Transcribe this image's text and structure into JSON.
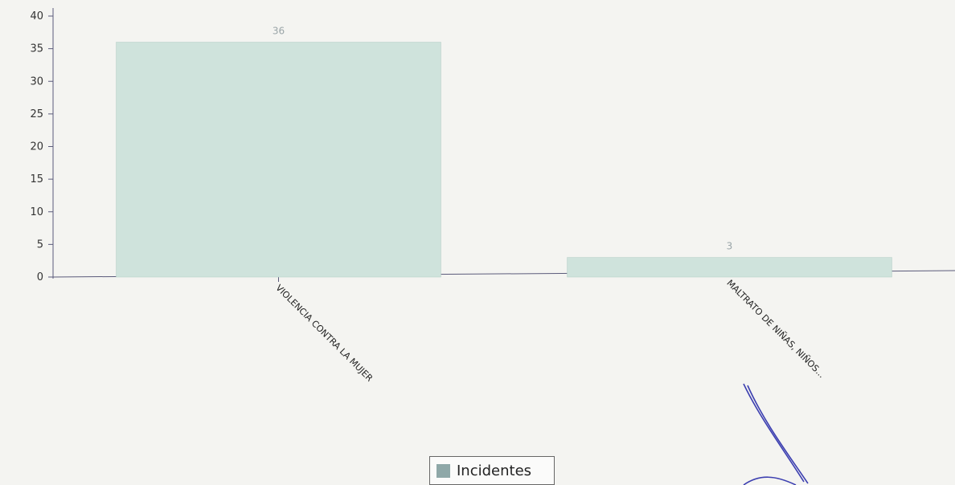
{
  "chart_data": {
    "type": "bar",
    "categories": [
      "VIOLENCIA CONTRA LA MUJER",
      "MALTRATO DE NIÑAS, NIÑOS..."
    ],
    "series": [
      {
        "name": "Incidentes",
        "values": [
          36,
          3
        ]
      }
    ],
    "ylim": [
      0,
      40
    ],
    "yticks": [
      0,
      5,
      10,
      15,
      20,
      25,
      30,
      35,
      40
    ],
    "grid": false,
    "legend": "bottom-center",
    "bar_color": "#cfe3dc",
    "legend_swatch_color": "#8fa8a8",
    "axis_color": "#5a5a7a"
  }
}
